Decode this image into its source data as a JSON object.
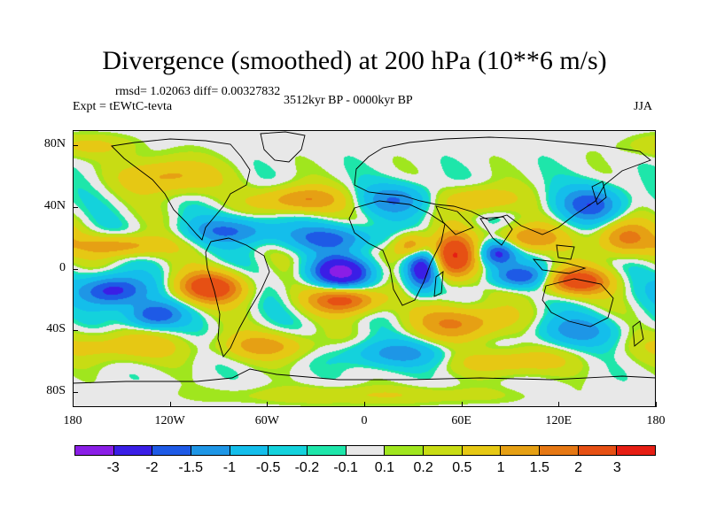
{
  "title": "Divergence (smoothed) at 200 hPa (10**6 m/s)",
  "subtitle_stats": "rmsd= 1.02063 diff= 0.00327832",
  "period": "3512kyr BP - 0000kyr BP",
  "experiment": "Expt = tEWtC-tevta",
  "season": "JJA",
  "map": {
    "projection": "cylindrical equidistant",
    "lon_range": [
      -180,
      180
    ],
    "lat_range": [
      -90,
      90
    ],
    "lat_ticks": [
      "80N",
      "40N",
      "0",
      "40S",
      "80S"
    ],
    "lon_ticks": [
      "180",
      "120W",
      "60W",
      "0",
      "60E",
      "120E",
      "180"
    ],
    "lat_tick_values": [
      80,
      40,
      0,
      -40,
      -80
    ],
    "lon_tick_values": [
      -180,
      -120,
      -60,
      0,
      60,
      120,
      180
    ],
    "anomalies": [
      {
        "lon": -15,
        "lat": -2,
        "value": -3.2,
        "sx": 13,
        "sy": 7
      },
      {
        "lon": -155,
        "lat": -14,
        "value": -2.5,
        "sx": 14,
        "sy": 7
      },
      {
        "lon": -130,
        "lat": -30,
        "value": -2.0,
        "sx": 12,
        "sy": 6
      },
      {
        "lon": -95,
        "lat": -12,
        "value": 2.6,
        "sx": 15,
        "sy": 7
      },
      {
        "lon": -12,
        "lat": -20,
        "value": 2.4,
        "sx": 15,
        "sy": 6
      },
      {
        "lon": 35,
        "lat": 0,
        "value": -2.6,
        "sx": 7,
        "sy": 10
      },
      {
        "lon": 55,
        "lat": 8,
        "value": 3.0,
        "sx": 9,
        "sy": 10
      },
      {
        "lon": 82,
        "lat": 10,
        "value": -2.3,
        "sx": 8,
        "sy": 6
      },
      {
        "lon": 95,
        "lat": -5,
        "value": -2.0,
        "sx": 12,
        "sy": 5
      },
      {
        "lon": 130,
        "lat": -8,
        "value": 2.6,
        "sx": 14,
        "sy": 6
      },
      {
        "lon": 160,
        "lat": 20,
        "value": 1.8,
        "sx": 12,
        "sy": 8
      },
      {
        "lon": 100,
        "lat": 20,
        "value": 1.6,
        "sx": 14,
        "sy": 6
      },
      {
        "lon": 30,
        "lat": 15,
        "value": 2.0,
        "sx": 8,
        "sy": 6
      },
      {
        "lon": -80,
        "lat": 25,
        "value": -1.5,
        "sx": 20,
        "sy": 6
      },
      {
        "lon": -150,
        "lat": 15,
        "value": 1.5,
        "sx": 18,
        "sy": 5
      },
      {
        "lon": -20,
        "lat": 20,
        "value": -1.6,
        "sx": 20,
        "sy": 6
      },
      {
        "lon": -40,
        "lat": 45,
        "value": 1.6,
        "sx": 18,
        "sy": 6
      },
      {
        "lon": 20,
        "lat": 45,
        "value": -1.4,
        "sx": 15,
        "sy": 7
      },
      {
        "lon": 70,
        "lat": 45,
        "value": 1.2,
        "sx": 15,
        "sy": 6
      },
      {
        "lon": 140,
        "lat": 42,
        "value": -1.8,
        "sx": 14,
        "sy": 8
      },
      {
        "lon": -120,
        "lat": 60,
        "value": 1.2,
        "sx": 20,
        "sy": 8
      },
      {
        "lon": 60,
        "lat": -35,
        "value": 1.6,
        "sx": 20,
        "sy": 8
      },
      {
        "lon": 130,
        "lat": -40,
        "value": -1.2,
        "sx": 18,
        "sy": 7
      },
      {
        "lon": -60,
        "lat": -50,
        "value": 1.2,
        "sx": 20,
        "sy": 6
      },
      {
        "lon": 20,
        "lat": -55,
        "value": -1.2,
        "sx": 22,
        "sy": 6
      },
      {
        "lon": -150,
        "lat": -50,
        "value": 0.9,
        "sx": 25,
        "sy": 7
      },
      {
        "lon": 90,
        "lat": -60,
        "value": 0.9,
        "sx": 25,
        "sy": 6
      },
      {
        "lon": 0,
        "lat": -82,
        "value": 0.5,
        "sx": 60,
        "sy": 4
      },
      {
        "lon": -170,
        "lat": 80,
        "value": 0.6,
        "sx": 20,
        "sy": 5
      }
    ]
  },
  "colorbar": {
    "colors": [
      "#8a1ee6",
      "#3a1ee6",
      "#1e5ae6",
      "#1e96e6",
      "#14beeb",
      "#14d2dc",
      "#1ee6aa",
      "#e8e8e8",
      "#a0e61e",
      "#c8dc14",
      "#e6c814",
      "#e6a014",
      "#e67814",
      "#e65014",
      "#e61e14"
    ],
    "labels": [
      "-3",
      "-2",
      "-1.5",
      "-1",
      "-0.5",
      "-0.2",
      "-0.1",
      "0.1",
      "0.2",
      "0.5",
      "1",
      "1.5",
      "2",
      "3"
    ],
    "levels": [
      -3,
      -2,
      -1.5,
      -1,
      -0.5,
      -0.2,
      -0.1,
      0.1,
      0.2,
      0.5,
      1,
      1.5,
      2,
      3
    ]
  }
}
